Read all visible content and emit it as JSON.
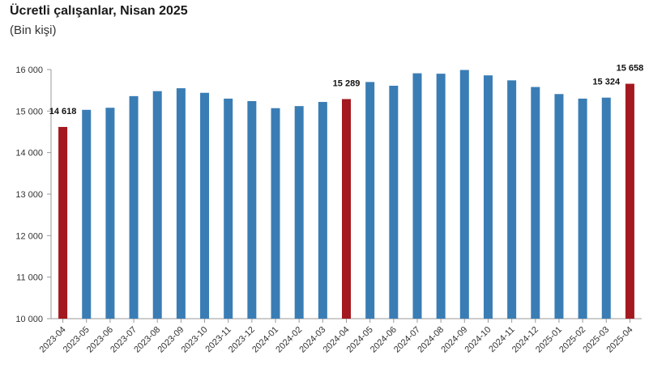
{
  "header": {
    "title": "Ücretli çalışanlar, Nisan 2025",
    "subtitle": "(Bin kişi)"
  },
  "chart_data": {
    "type": "bar",
    "title": "Ücretli çalışanlar, Nisan 2025",
    "subtitle": "(Bin kişi)",
    "xlabel": "",
    "ylabel": "",
    "ylim": [
      10000,
      16000
    ],
    "yticks": [
      10000,
      11000,
      12000,
      13000,
      14000,
      15000,
      16000
    ],
    "ytick_labels": [
      "10 000",
      "11 000",
      "12 000",
      "13 000",
      "14 000",
      "15 000",
      "16 000"
    ],
    "grid": false,
    "legend": "none",
    "categories": [
      "2023-04",
      "2023-05",
      "2023-06",
      "2023-07",
      "2023-08",
      "2023-09",
      "2023-10",
      "2023-11",
      "2023-12",
      "2024-01",
      "2024-02",
      "2024-03",
      "2024-04",
      "2024-05",
      "2024-06",
      "2024-07",
      "2024-08",
      "2024-09",
      "2024-10",
      "2024-11",
      "2024-12",
      "2025-01",
      "2025-02",
      "2025-03",
      "2025-04"
    ],
    "values": [
      14618,
      15030,
      15080,
      15360,
      15480,
      15550,
      15440,
      15300,
      15240,
      15070,
      15120,
      15220,
      15289,
      15700,
      15610,
      15910,
      15900,
      15990,
      15860,
      15740,
      15580,
      15410,
      15300,
      15324,
      15658
    ],
    "highlighted": [
      "2023-04",
      "2024-04",
      "2025-04"
    ],
    "data_labels": {
      "2023-04": "14 618",
      "2024-04": "15 289",
      "2025-03": "15 324",
      "2025-04": "15 658"
    },
    "colors": {
      "bar": "#3a7db5",
      "highlight": "#a3191f",
      "axis": "#999999"
    }
  }
}
